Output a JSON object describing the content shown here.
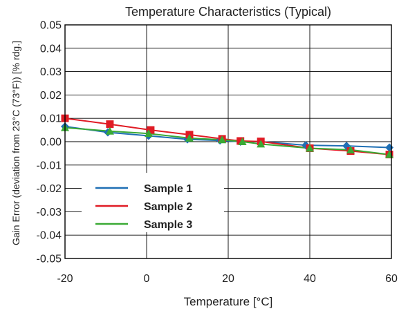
{
  "chart_data": {
    "type": "line",
    "title": "Temperature Characteristics (Typical)",
    "xlabel": "Temperature [°C]",
    "ylabel": "Gain Error (deviation from 23°C (73°F)) [% rdg.]",
    "xlim": [
      -20,
      60
    ],
    "ylim": [
      -0.05,
      0.05
    ],
    "x_ticks": [
      -20,
      0,
      20,
      40,
      60
    ],
    "x_tick_labels": [
      "-20",
      "0",
      "20",
      "40",
      "60"
    ],
    "y_ticks": [
      0.05,
      0.04,
      0.03,
      0.02,
      0.01,
      0.0,
      -0.01,
      -0.02,
      -0.03,
      -0.04,
      -0.05
    ],
    "y_tick_labels": [
      "0.05",
      "0.04",
      "0.03",
      "0.02",
      "0.01",
      "0.00",
      "-0.01",
      "-0.02",
      "-0.03",
      "-0.04",
      "-0.05"
    ],
    "grid": true,
    "legend_position": "bottom-left",
    "series": [
      {
        "name": "Sample 1",
        "color": "#1f6fb4",
        "marker": "diamond",
        "x": [
          -20,
          -9.5,
          0.5,
          10,
          18,
          23,
          28,
          39,
          49,
          59.5
        ],
        "y": [
          0.0065,
          0.004,
          0.0025,
          0.001,
          0.0005,
          0.0,
          0.0,
          -0.0015,
          -0.0018,
          -0.0025
        ]
      },
      {
        "name": "Sample 2",
        "color": "#e01b24",
        "marker": "square",
        "x": [
          -20,
          -9,
          1,
          10.5,
          18.5,
          23,
          28,
          40,
          50,
          59.5
        ],
        "y": [
          0.01,
          0.0075,
          0.005,
          0.003,
          0.0012,
          0.0003,
          0.0001,
          -0.0028,
          -0.004,
          -0.0055
        ]
      },
      {
        "name": "Sample 3",
        "color": "#3aaa35",
        "marker": "triangle",
        "x": [
          -20,
          -9,
          0.5,
          10.5,
          18.5,
          23.5,
          28,
          40,
          50,
          59.5
        ],
        "y": [
          0.006,
          0.0045,
          0.0035,
          0.0015,
          0.0008,
          0.0,
          -0.001,
          -0.0028,
          -0.0035,
          -0.0055
        ]
      }
    ]
  }
}
